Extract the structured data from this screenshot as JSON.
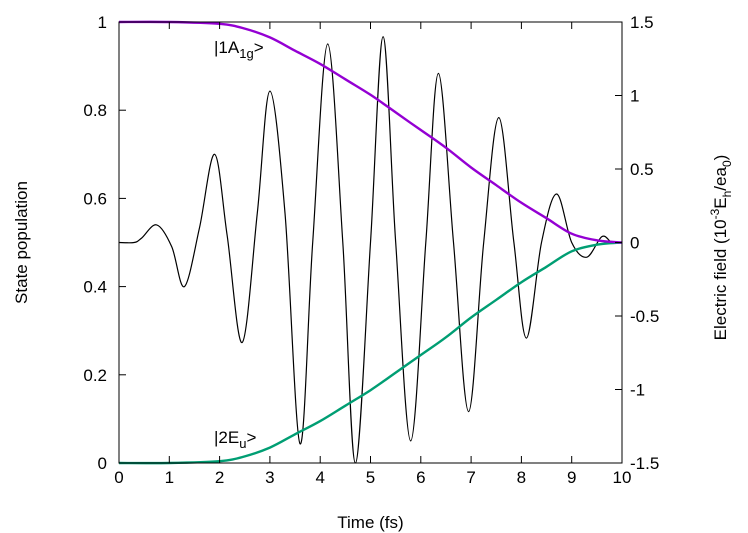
{
  "chart_data": {
    "type": "line",
    "x": {
      "label": "Time (fs)",
      "range": [
        0,
        10
      ],
      "ticks": [
        "0",
        "1",
        "2",
        "3",
        "4",
        "5",
        "6",
        "7",
        "8",
        "9",
        "10"
      ]
    },
    "y_left": {
      "label": "State population",
      "range": [
        0,
        1
      ],
      "ticks": [
        "0",
        "0.2",
        "0.4",
        "0.6",
        "0.8",
        "1"
      ]
    },
    "y_right": {
      "label_parts": [
        "Electric field (10",
        "-3",
        "E",
        "h",
        "/ea",
        "0",
        ")"
      ],
      "range": [
        -1.5,
        1.5
      ],
      "ticks": [
        "-1.5",
        "-1",
        "-0.5",
        "0",
        "0.5",
        "1",
        "1.5"
      ]
    },
    "annotations": {
      "state_1a1g": {
        "prefix": "|1A",
        "sub": "1g",
        "suffix": ">"
      },
      "state_2eu": {
        "prefix": "|2E",
        "sub": "u",
        "suffix": ">"
      }
    },
    "series": [
      {
        "axis": "left",
        "color": "#9400d3",
        "x": [
          0,
          1,
          2,
          2.5,
          3,
          3.5,
          4,
          4.5,
          5,
          5.5,
          6,
          6.5,
          7,
          7.5,
          8,
          8.5,
          9,
          9.5,
          10
        ],
        "y": [
          1.0,
          1.0,
          0.996,
          0.985,
          0.965,
          0.935,
          0.905,
          0.87,
          0.835,
          0.795,
          0.755,
          0.715,
          0.67,
          0.63,
          0.59,
          0.555,
          0.52,
          0.505,
          0.5
        ]
      },
      {
        "axis": "left",
        "color": "#009e73",
        "x": [
          0,
          1,
          2,
          2.5,
          3,
          3.5,
          4,
          4.5,
          5,
          5.5,
          6,
          6.5,
          7,
          7.5,
          8,
          8.5,
          9,
          9.5,
          10
        ],
        "y": [
          0.0,
          0.0,
          0.004,
          0.015,
          0.035,
          0.065,
          0.095,
          0.13,
          0.165,
          0.205,
          0.245,
          0.285,
          0.33,
          0.37,
          0.41,
          0.445,
          0.48,
          0.495,
          0.5
        ]
      },
      {
        "axis": "right",
        "color": "#000000",
        "x": [
          0,
          0.3,
          0.45,
          0.75,
          1.05,
          1.3,
          1.6,
          1.9,
          2.15,
          2.45,
          2.75,
          3.0,
          3.3,
          3.6,
          3.85,
          4.15,
          4.45,
          4.7,
          5.0,
          5.25,
          5.5,
          5.8,
          6.1,
          6.35,
          6.65,
          6.95,
          7.25,
          7.55,
          7.85,
          8.1,
          8.4,
          8.7,
          9.0,
          9.3,
          9.6,
          9.8,
          10.0
        ],
        "y": [
          0.0,
          0.0,
          0.03,
          0.12,
          -0.03,
          -0.3,
          0.1,
          0.6,
          0.05,
          -0.68,
          0.2,
          1.03,
          0.2,
          -1.37,
          0.0,
          1.35,
          0.0,
          -1.5,
          0.0,
          1.4,
          0.0,
          -1.35,
          0.0,
          1.15,
          0.0,
          -1.15,
          0.0,
          0.85,
          0.0,
          -0.65,
          0.0,
          0.33,
          0.0,
          -0.1,
          0.04,
          0.0,
          0.0
        ]
      }
    ]
  }
}
